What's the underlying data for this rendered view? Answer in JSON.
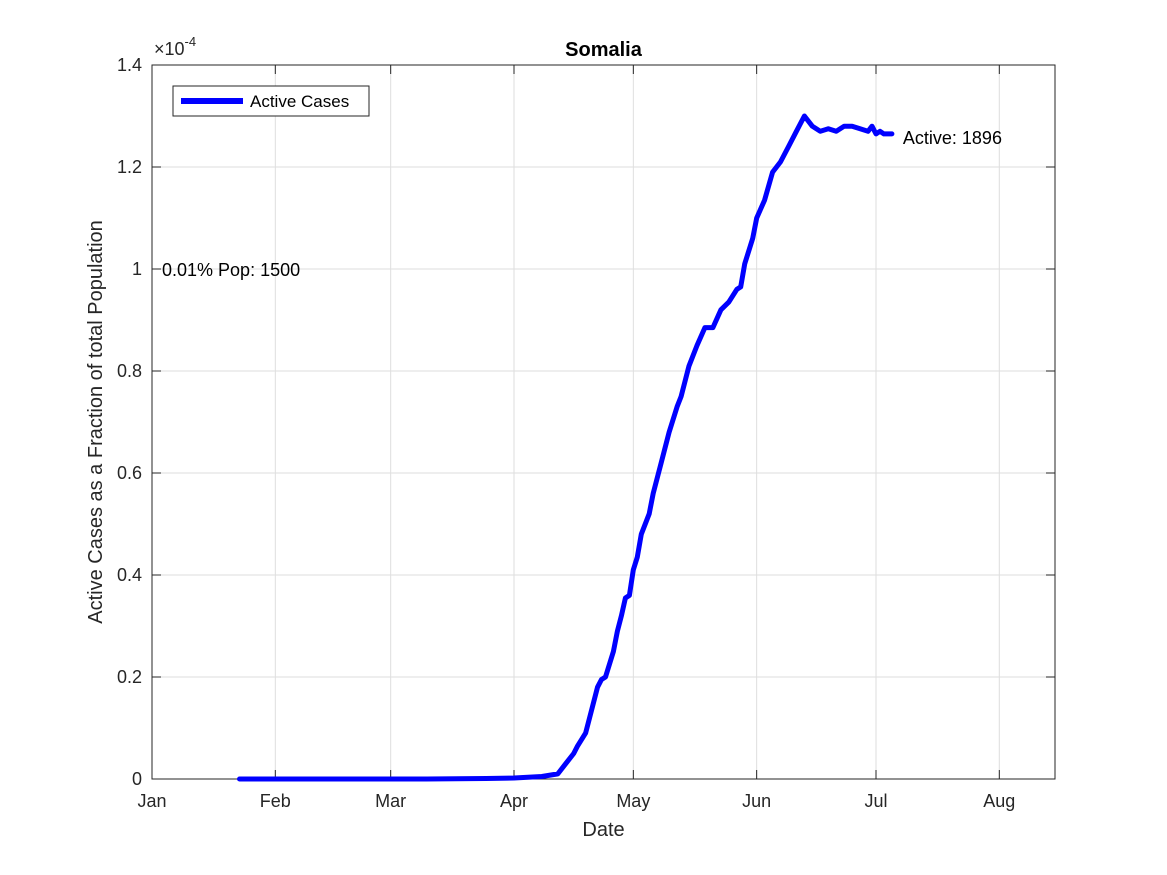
{
  "chart_data": {
    "type": "line",
    "title": "Somalia",
    "xlabel": "Date",
    "ylabel": "Active Cases as a Fraction of total Population",
    "y_exponent_label": "×10",
    "y_exponent_power": "-4",
    "ylim": [
      0,
      1.4
    ],
    "y_scale_factor": 0.0001,
    "xlim": [
      "Jan 1",
      "Aug 15"
    ],
    "x_ticks": [
      {
        "label": "Jan",
        "date": "Jan 1"
      },
      {
        "label": "Feb",
        "date": "Feb 1"
      },
      {
        "label": "Mar",
        "date": "Mar 1"
      },
      {
        "label": "Apr",
        "date": "Apr 1"
      },
      {
        "label": "May",
        "date": "May 1"
      },
      {
        "label": "Jun",
        "date": "Jun 1"
      },
      {
        "label": "Jul",
        "date": "Jul 1"
      },
      {
        "label": "Aug",
        "date": "Aug 1"
      }
    ],
    "y_ticks": [
      "0",
      "0.2",
      "0.4",
      "0.6",
      "0.8",
      "1",
      "1.2",
      "1.4"
    ],
    "grid": true,
    "legend_position": "top-left",
    "series": [
      {
        "name": "Active Cases",
        "color": "#0000ff",
        "x": [
          "Jan 23",
          "Feb 15",
          "Mar 10",
          "Mar 25",
          "Apr 1",
          "Apr 8",
          "Apr 12",
          "Apr 14",
          "Apr 16",
          "Apr 17",
          "Apr 19",
          "Apr 20",
          "Apr 22",
          "Apr 23",
          "Apr 24",
          "Apr 26",
          "Apr 27",
          "Apr 28",
          "Apr 29",
          "Apr 30",
          "May 1",
          "May 2",
          "May 3",
          "May 5",
          "May 6",
          "May 8",
          "May 10",
          "May 12",
          "May 13",
          "May 15",
          "May 17",
          "May 19",
          "May 21",
          "May 23",
          "May 25",
          "May 27",
          "May 28",
          "May 29",
          "May 31",
          "Jun 1",
          "Jun 3",
          "Jun 5",
          "Jun 7",
          "Jun 9",
          "Jun 11",
          "Jun 13",
          "Jun 15",
          "Jun 17",
          "Jun 19",
          "Jun 21",
          "Jun 23",
          "Jun 25",
          "Jun 27",
          "Jun 29",
          "Jun 30",
          "Jul 1",
          "Jul 2",
          "Jul 3",
          "Jul 5"
        ],
        "values": [
          0,
          0,
          0,
          0.001,
          0.002,
          0.005,
          0.01,
          0.03,
          0.05,
          0.065,
          0.09,
          0.12,
          0.18,
          0.195,
          0.2,
          0.25,
          0.29,
          0.32,
          0.355,
          0.36,
          0.41,
          0.435,
          0.48,
          0.52,
          0.56,
          0.62,
          0.68,
          0.73,
          0.75,
          0.81,
          0.85,
          0.885,
          0.885,
          0.92,
          0.935,
          0.96,
          0.965,
          1.01,
          1.06,
          1.1,
          1.135,
          1.19,
          1.21,
          1.24,
          1.27,
          1.3,
          1.28,
          1.27,
          1.275,
          1.27,
          1.28,
          1.28,
          1.275,
          1.27,
          1.28,
          1.265,
          1.27,
          1.265,
          1.265
        ]
      }
    ],
    "annotations": [
      {
        "text": "Active: 1896",
        "anchor": "end-of-series"
      },
      {
        "text": "0.01% Pop: 1500",
        "anchor": "y=1"
      }
    ]
  }
}
